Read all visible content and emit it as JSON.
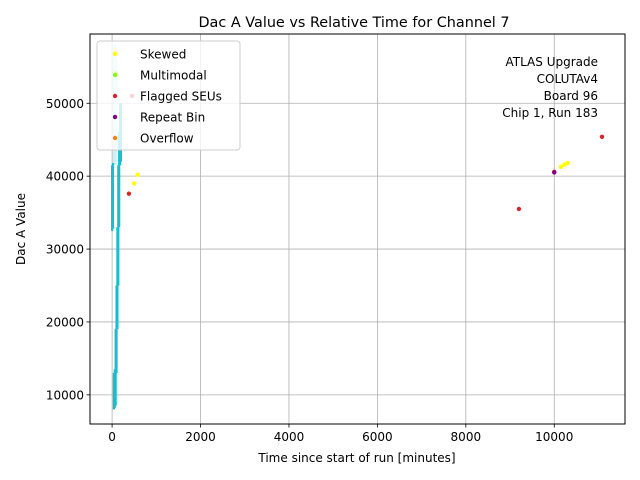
{
  "chart_data": {
    "type": "scatter",
    "title": "Dac A Value vs Relative Time for Channel 7",
    "xlabel": "Time since start of run [minutes]",
    "ylabel": "Dac A Value",
    "xlim": [
      -500,
      11600
    ],
    "ylim": [
      6000,
      59500
    ],
    "xticks": [
      0,
      2000,
      4000,
      6000,
      8000,
      10000
    ],
    "yticks": [
      10000,
      20000,
      30000,
      40000,
      50000
    ],
    "xtick_labels": [
      "0",
      "2000",
      "4000",
      "6000",
      "8000",
      "10000"
    ],
    "ytick_labels": [
      "10000",
      "20000",
      "30000",
      "40000",
      "50000"
    ],
    "grid": true,
    "legend_position": "top-left",
    "annotation": [
      "ATLAS Upgrade",
      "COLUTAv4",
      "Board 96",
      "Chip 1, Run 183"
    ],
    "main_series": {
      "color": "#17becf",
      "segments": [
        {
          "x": 0,
          "y": [
            32500,
            41500
          ]
        },
        {
          "x": 20,
          "y": [
            32800,
            41800
          ]
        },
        {
          "x": 40,
          "y": [
            8000,
            13000
          ]
        },
        {
          "x": 60,
          "y": [
            8200,
            13500
          ]
        },
        {
          "x": 80,
          "y": [
            8500,
            19000
          ]
        },
        {
          "x": 100,
          "y": [
            13000,
            25000
          ]
        },
        {
          "x": 120,
          "y": [
            19000,
            33000
          ]
        },
        {
          "x": 140,
          "y": [
            25000,
            41500
          ]
        },
        {
          "x": 160,
          "y": [
            33000,
            46000
          ]
        },
        {
          "x": 180,
          "y": [
            41500,
            50000
          ]
        },
        {
          "x": 200,
          "y": [
            42000,
            50000
          ]
        }
      ],
      "light_segments": [
        {
          "x": 60,
          "y": [
            41500,
            58000
          ]
        },
        {
          "x": 80,
          "y": [
            44000,
            56000
          ]
        }
      ]
    },
    "series": [
      {
        "name": "Skewed",
        "color": "#ffff00",
        "points": [
          [
            70,
            57200
          ],
          [
            500,
            39000
          ],
          [
            580,
            40200
          ],
          [
            10150,
            41300
          ],
          [
            10230,
            41600
          ],
          [
            10300,
            41800
          ]
        ]
      },
      {
        "name": "Multimodal",
        "color": "#7fff00",
        "points": [
          [
            75,
            54200
          ]
        ]
      },
      {
        "name": "Flagged SEUs",
        "color": "#d62728",
        "points": [
          [
            380,
            37600
          ],
          [
            9200,
            35500
          ],
          [
            10000,
            40600
          ],
          [
            11080,
            45400
          ],
          [
            450,
            51000
          ]
        ]
      },
      {
        "name": "Repeat Bin",
        "color": "#800080",
        "points": [
          [
            10000,
            40500
          ]
        ]
      },
      {
        "name": "Overflow",
        "color": "#ff7f0e",
        "points": []
      }
    ]
  }
}
